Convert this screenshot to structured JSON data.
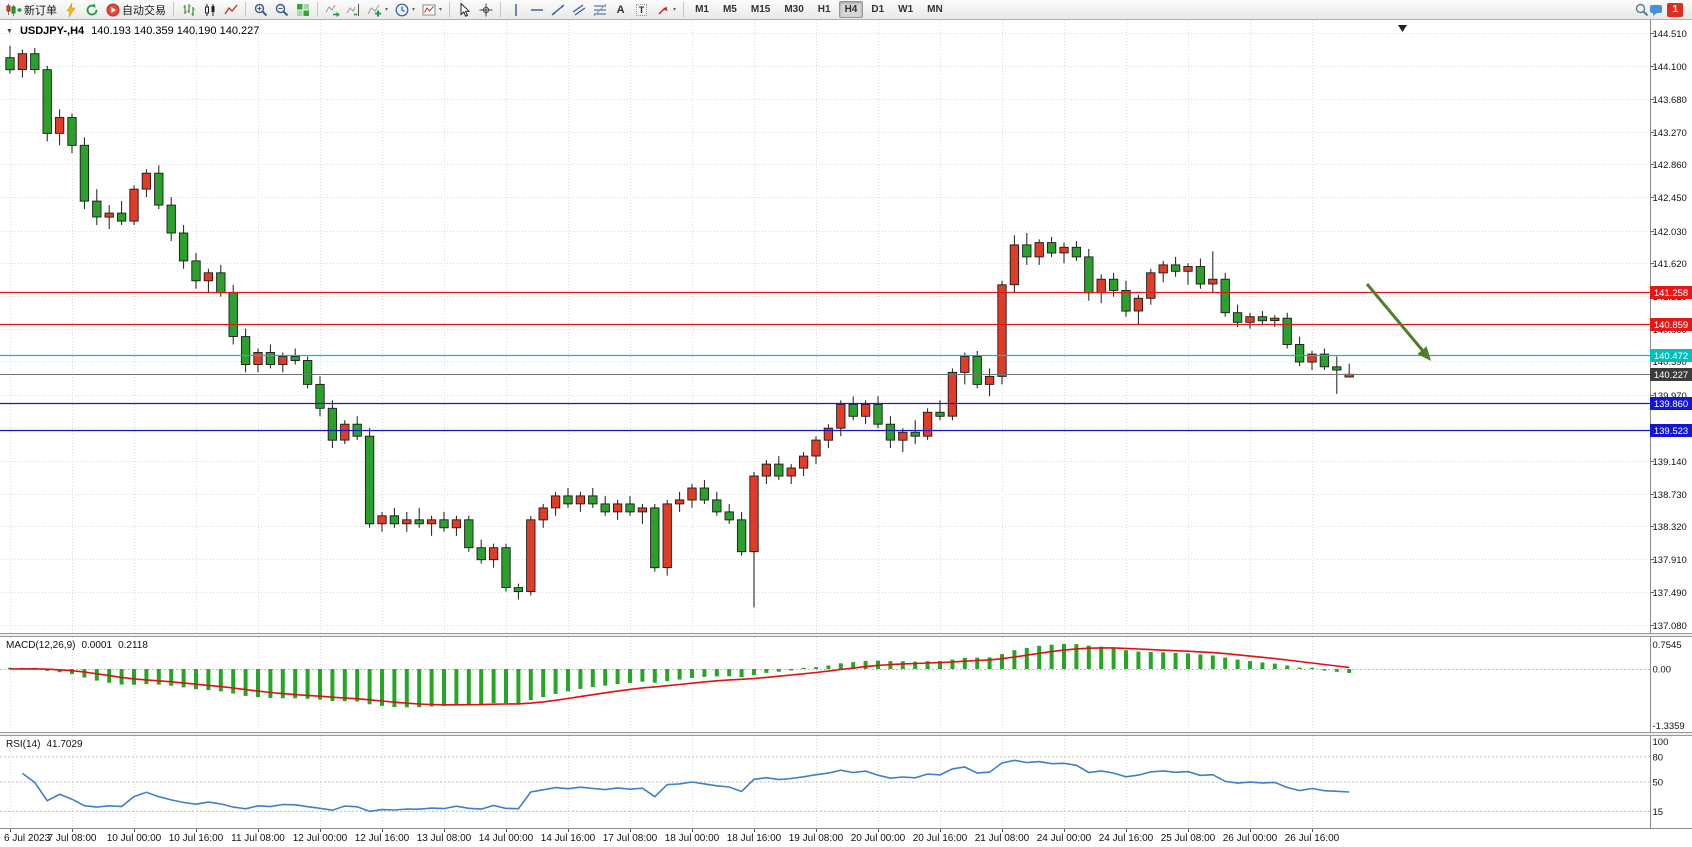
{
  "toolbar": {
    "buttons": [
      {
        "name": "new-order-button",
        "icon": "new-order-icon",
        "label": "新订单"
      },
      {
        "name": "quick-trade-button",
        "icon": "lightning-icon"
      },
      {
        "name": "refresh-button",
        "icon": "refresh-icon"
      },
      {
        "name": "autotrading-button",
        "icon": "autotrading-icon",
        "label": "自动交易"
      },
      {
        "separator": true
      },
      {
        "name": "bar-chart-button",
        "icon": "bars-icon"
      },
      {
        "name": "candlestick-chart-button",
        "icon": "candles-icon"
      },
      {
        "name": "line-chart-button",
        "icon": "line-chart-icon"
      },
      {
        "separator": true
      },
      {
        "name": "zoom-in-button",
        "icon": "zoom-in-icon"
      },
      {
        "name": "zoom-out-button",
        "icon": "zoom-out-icon"
      },
      {
        "name": "tile-windows-button",
        "icon": "tile-windows-icon"
      },
      {
        "separator": true
      },
      {
        "name": "auto-scroll-button",
        "icon": "auto-scroll-icon"
      },
      {
        "name": "chart-shift-button",
        "icon": "chart-shift-icon"
      },
      {
        "name": "indicators-button",
        "icon": "indicators-icon",
        "dropdown": true
      },
      {
        "name": "periods-button",
        "icon": "clock-icon",
        "dropdown": true
      },
      {
        "name": "templates-button",
        "icon": "templates-icon",
        "dropdown": true
      },
      {
        "separator": true
      },
      {
        "name": "cursor-button",
        "icon": "cursor-icon"
      },
      {
        "name": "crosshair-button",
        "icon": "crosshair-icon"
      },
      {
        "separator": true
      },
      {
        "name": "vertical-line-button",
        "icon": "vertical-line-icon"
      },
      {
        "name": "horizontal-line-button",
        "icon": "horizontal-line-icon"
      },
      {
        "name": "trendline-button",
        "icon": "trendline-icon"
      },
      {
        "name": "channel-button",
        "icon": "channel-icon"
      },
      {
        "name": "fibonacci-button",
        "icon": "fibonacci-icon"
      },
      {
        "name": "text-button",
        "icon": "text-icon"
      },
      {
        "name": "text-label-button",
        "icon": "text-label-icon"
      },
      {
        "name": "arrows-button",
        "icon": "arrow-object-icon",
        "dropdown": true
      },
      {
        "separator": true
      }
    ],
    "timeframes": [
      "M1",
      "M5",
      "M15",
      "M30",
      "H1",
      "H4",
      "D1",
      "W1",
      "MN"
    ],
    "active_timeframe": "H4",
    "right": {
      "icons": [
        "search-icon",
        "chat-icon"
      ],
      "notification_count": "1"
    }
  },
  "chart_header": {
    "symbol_timeframe": "USDJPY-,H4",
    "ohlc_values": "140.193 140.359 140.190 140.227"
  },
  "indicators": {
    "macd": {
      "label": "MACD(12,26,9)",
      "value_main": "0.0001",
      "value_signal": "0.2118"
    },
    "rsi": {
      "label": "RSI(14)",
      "value": "41.7029"
    }
  },
  "overlays": {
    "hlines": [
      {
        "name": "resistance-line-1",
        "price": 141.258,
        "label": "141.258",
        "color": "#e81717"
      },
      {
        "name": "resistance-line-2",
        "price": 140.859,
        "label": "140.859",
        "color": "#e81717"
      },
      {
        "name": "support-line-cyan",
        "price": 140.472,
        "label": "140.472",
        "color": "#00bfbf"
      },
      {
        "name": "support-line-1",
        "price": 139.86,
        "label": "139.860",
        "color": "#1515d6"
      },
      {
        "name": "support-line-2",
        "price": 139.523,
        "label": "139.523",
        "color": "#1515d6"
      }
    ],
    "bid_line": {
      "price": 140.227,
      "label": "140.227",
      "line_color": "#737373",
      "tag_color": "#3c3c3c"
    },
    "trend_arrow": {
      "direction": "down-right",
      "color": "#4e7d2b"
    }
  },
  "chart_data": [
    {
      "type": "candlestick",
      "symbol": "USDJPY-",
      "timeframe": "H4",
      "ylim": [
        137.08,
        144.51
      ],
      "y_tick_labels": [
        "144.510",
        "144.100",
        "143.680",
        "143.270",
        "142.860",
        "142.450",
        "142.030",
        "141.620",
        "141.210",
        "140.800",
        "140.390",
        "139.970",
        "139.560",
        "139.140",
        "138.730",
        "138.320",
        "137.910",
        "137.490",
        "137.080"
      ],
      "x_tick_every": 5,
      "x_tick_labels": [
        "6 Jul 2023",
        "7 Jul 08:00",
        "10 Jul 00:00",
        "10 Jul 16:00",
        "11 Jul 08:00",
        "12 Jul 00:00",
        "12 Jul 16:00",
        "13 Jul 08:00",
        "14 Jul 00:00",
        "14 Jul 16:00",
        "17 Jul 08:00",
        "18 Jul 00:00",
        "18 Jul 16:00",
        "19 Jul 08:00",
        "20 Jul 00:00",
        "20 Jul 16:00",
        "21 Jul 08:00",
        "24 Jul 00:00",
        "24 Jul 16:00",
        "25 Jul 08:00",
        "26 Jul 00:00",
        "26 Jul 16:00"
      ],
      "colors": {
        "bull": "#e03c28",
        "bear": "#2ca02c",
        "wick": "#1a1a1a"
      },
      "ohlc": [
        [
          144.2,
          144.35,
          144.0,
          144.05
        ],
        [
          144.05,
          144.3,
          143.95,
          144.25
        ],
        [
          144.25,
          144.32,
          144.0,
          144.05
        ],
        [
          144.05,
          144.1,
          143.15,
          143.25
        ],
        [
          143.25,
          143.55,
          143.1,
          143.45
        ],
        [
          143.45,
          143.5,
          143.0,
          143.1
        ],
        [
          143.1,
          143.2,
          142.3,
          142.4
        ],
        [
          142.4,
          142.55,
          142.1,
          142.2
        ],
        [
          142.2,
          142.35,
          142.05,
          142.25
        ],
        [
          142.25,
          142.4,
          142.1,
          142.15
        ],
        [
          142.15,
          142.6,
          142.1,
          142.55
        ],
        [
          142.55,
          142.8,
          142.45,
          142.75
        ],
        [
          142.75,
          142.85,
          142.3,
          142.35
        ],
        [
          142.35,
          142.45,
          141.9,
          142.0
        ],
        [
          142.0,
          142.1,
          141.55,
          141.65
        ],
        [
          141.65,
          141.75,
          141.3,
          141.4
        ],
        [
          141.4,
          141.55,
          141.25,
          141.5
        ],
        [
          141.5,
          141.6,
          141.2,
          141.25
        ],
        [
          141.25,
          141.35,
          140.6,
          140.7
        ],
        [
          140.7,
          140.8,
          140.25,
          140.35
        ],
        [
          140.35,
          140.55,
          140.25,
          140.5
        ],
        [
          140.5,
          140.6,
          140.3,
          140.35
        ],
        [
          140.35,
          140.5,
          140.25,
          140.45
        ],
        [
          140.45,
          140.55,
          140.35,
          140.4
        ],
        [
          140.4,
          140.45,
          140.05,
          140.1
        ],
        [
          140.1,
          140.2,
          139.7,
          139.8
        ],
        [
          139.8,
          139.9,
          139.3,
          139.4
        ],
        [
          139.4,
          139.65,
          139.35,
          139.6
        ],
        [
          139.6,
          139.7,
          139.4,
          139.45
        ],
        [
          139.45,
          139.55,
          138.3,
          138.35
        ],
        [
          138.35,
          138.5,
          138.25,
          138.45
        ],
        [
          138.45,
          138.55,
          138.3,
          138.35
        ],
        [
          138.35,
          138.5,
          138.25,
          138.4
        ],
        [
          138.4,
          138.55,
          138.3,
          138.35
        ],
        [
          138.35,
          138.45,
          138.2,
          138.4
        ],
        [
          138.4,
          138.5,
          138.25,
          138.3
        ],
        [
          138.3,
          138.45,
          138.2,
          138.4
        ],
        [
          138.4,
          138.45,
          138.0,
          138.05
        ],
        [
          138.05,
          138.15,
          137.85,
          137.9
        ],
        [
          137.9,
          138.1,
          137.8,
          138.05
        ],
        [
          138.05,
          138.1,
          137.5,
          137.55
        ],
        [
          137.55,
          137.6,
          137.4,
          137.5
        ],
        [
          137.5,
          138.45,
          137.45,
          138.4
        ],
        [
          138.4,
          138.6,
          138.3,
          138.55
        ],
        [
          138.55,
          138.75,
          138.45,
          138.7
        ],
        [
          138.7,
          138.8,
          138.55,
          138.6
        ],
        [
          138.6,
          138.75,
          138.5,
          138.7
        ],
        [
          138.7,
          138.8,
          138.55,
          138.6
        ],
        [
          138.6,
          138.7,
          138.45,
          138.5
        ],
        [
          138.5,
          138.65,
          138.4,
          138.6
        ],
        [
          138.6,
          138.7,
          138.45,
          138.5
        ],
        [
          138.5,
          138.6,
          138.35,
          138.55
        ],
        [
          138.55,
          138.6,
          137.75,
          137.8
        ],
        [
          137.8,
          138.65,
          137.7,
          138.6
        ],
        [
          138.6,
          138.75,
          138.5,
          138.65
        ],
        [
          138.65,
          138.85,
          138.55,
          138.8
        ],
        [
          138.8,
          138.9,
          138.6,
          138.65
        ],
        [
          138.65,
          138.75,
          138.45,
          138.5
        ],
        [
          138.5,
          138.6,
          138.35,
          138.4
        ],
        [
          138.4,
          138.5,
          137.95,
          138.0
        ],
        [
          138.0,
          139.0,
          137.3,
          138.95
        ],
        [
          138.95,
          139.15,
          138.85,
          139.1
        ],
        [
          139.1,
          139.2,
          138.9,
          138.95
        ],
        [
          138.95,
          139.1,
          138.85,
          139.05
        ],
        [
          139.05,
          139.25,
          138.95,
          139.2
        ],
        [
          139.2,
          139.45,
          139.1,
          139.4
        ],
        [
          139.4,
          139.6,
          139.3,
          139.55
        ],
        [
          139.55,
          139.9,
          139.45,
          139.85
        ],
        [
          139.85,
          139.95,
          139.65,
          139.7
        ],
        [
          139.7,
          139.9,
          139.6,
          139.85
        ],
        [
          139.85,
          139.95,
          139.55,
          139.6
        ],
        [
          139.6,
          139.7,
          139.3,
          139.4
        ],
        [
          139.4,
          139.55,
          139.25,
          139.5
        ],
        [
          139.5,
          139.65,
          139.35,
          139.45
        ],
        [
          139.45,
          139.8,
          139.4,
          139.75
        ],
        [
          139.75,
          139.9,
          139.65,
          139.7
        ],
        [
          139.7,
          140.3,
          139.65,
          140.25
        ],
        [
          140.25,
          140.5,
          140.1,
          140.45
        ],
        [
          140.45,
          140.52,
          140.05,
          140.1
        ],
        [
          140.1,
          140.3,
          139.95,
          140.2
        ],
        [
          140.2,
          141.4,
          140.1,
          141.35
        ],
        [
          141.35,
          141.97,
          141.25,
          141.85
        ],
        [
          141.85,
          142.0,
          141.6,
          141.7
        ],
        [
          141.7,
          141.92,
          141.6,
          141.88
        ],
        [
          141.88,
          141.95,
          141.7,
          141.75
        ],
        [
          141.75,
          141.88,
          141.62,
          141.82
        ],
        [
          141.82,
          141.9,
          141.65,
          141.7
        ],
        [
          141.7,
          141.8,
          141.15,
          141.25
        ],
        [
          141.25,
          141.48,
          141.12,
          141.42
        ],
        [
          141.42,
          141.5,
          141.2,
          141.28
        ],
        [
          141.28,
          141.4,
          140.95,
          141.02
        ],
        [
          141.02,
          141.22,
          140.85,
          141.18
        ],
        [
          141.18,
          141.55,
          141.1,
          141.5
        ],
        [
          141.5,
          141.65,
          141.38,
          141.6
        ],
        [
          141.6,
          141.7,
          141.45,
          141.52
        ],
        [
          141.52,
          141.62,
          141.35,
          141.58
        ],
        [
          141.58,
          141.68,
          141.3,
          141.36
        ],
        [
          141.36,
          141.77,
          141.25,
          141.42
        ],
        [
          141.42,
          141.5,
          140.95,
          141.0
        ],
        [
          141.0,
          141.1,
          140.82,
          140.88
        ],
        [
          140.88,
          141.0,
          140.8,
          140.95
        ],
        [
          140.95,
          141.02,
          140.85,
          140.9
        ],
        [
          140.9,
          140.97,
          140.82,
          140.93
        ],
        [
          140.93,
          141.0,
          140.55,
          140.6
        ],
        [
          140.6,
          140.7,
          140.33,
          140.38
        ],
        [
          140.38,
          140.52,
          140.28,
          140.48
        ],
        [
          140.48,
          140.55,
          140.28,
          140.32
        ],
        [
          140.32,
          140.45,
          139.98,
          140.28
        ],
        [
          140.193,
          140.359,
          140.19,
          140.227
        ]
      ]
    },
    {
      "type": "bar",
      "name": "MACD(12,26,9)",
      "derived_from": "ohlc closes",
      "params": {
        "fast": 12,
        "slow": 26,
        "signal_period": 9
      },
      "current_values": {
        "histogram": "0.0001",
        "signal": "0.2118"
      },
      "y_tick_labels": [
        "0.7545",
        "0.00",
        "-1.3359"
      ],
      "colors": {
        "histogram": "#27a527",
        "signal": "#e01010"
      }
    },
    {
      "type": "line",
      "name": "RSI(14)",
      "derived_from": "ohlc closes",
      "params": {
        "period": 14
      },
      "current_value": "41.7029",
      "y_tick_labels": [
        "100",
        "80",
        "50",
        "15"
      ],
      "levels": [
        80,
        50,
        15
      ],
      "color": "#3f7fc9"
    }
  ]
}
